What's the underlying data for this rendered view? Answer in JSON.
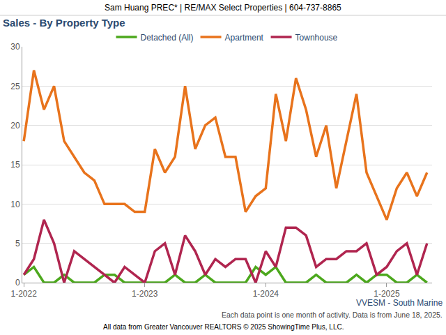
{
  "chart_data": {
    "type": "line",
    "header": "Sam Huang PREC* | RE/MAX Select Properties | 604-737-8865",
    "title": "Sales - By Property Type",
    "annotations": [
      "VVESM - South Marine",
      "Each data point is one month of activity. Data is from June 18, 2025.",
      "All data from Greater Vancouver REALTORS © 2025 ShowingTime Plus, LLC."
    ],
    "categories": [
      "1-2022",
      null,
      null,
      null,
      null,
      null,
      null,
      null,
      null,
      null,
      null,
      null,
      "1-2023",
      null,
      null,
      null,
      null,
      null,
      null,
      null,
      null,
      null,
      null,
      null,
      "1-2024",
      null,
      null,
      null,
      null,
      null,
      null,
      null,
      null,
      null,
      null,
      null,
      "1-2025",
      null,
      null,
      null,
      null
    ],
    "series": [
      {
        "name": "Detached (All)",
        "color": "#4ca81d",
        "values": [
          1,
          2,
          0,
          0,
          1,
          0,
          0,
          0,
          1,
          1,
          0,
          0,
          0,
          0,
          0,
          1,
          0,
          0,
          1,
          0,
          0,
          0,
          0,
          2,
          1,
          2,
          0,
          0,
          0,
          1,
          0,
          0,
          0,
          1,
          0,
          1,
          1,
          0,
          0,
          1,
          0
        ]
      },
      {
        "name": "Apartment",
        "color": "#e8731c",
        "values": [
          18,
          27,
          22,
          25,
          18,
          16,
          14,
          13,
          10,
          10,
          10,
          9,
          9,
          17,
          14,
          16,
          25,
          17,
          20,
          21,
          16,
          16,
          9,
          11,
          12,
          24,
          18,
          26,
          22,
          16,
          20,
          12,
          18,
          24,
          14,
          11,
          8,
          12,
          14,
          11,
          14
        ]
      },
      {
        "name": "Townhouse",
        "color": "#b0254f",
        "values": [
          1,
          3,
          8,
          5,
          0,
          4,
          3,
          2,
          1,
          0,
          2,
          1,
          0,
          4,
          5,
          1,
          6,
          4,
          1,
          3,
          2,
          3,
          3,
          0,
          4,
          2,
          7,
          7,
          6,
          2,
          3,
          3,
          4,
          4,
          5,
          1,
          2,
          4,
          5,
          1,
          5
        ]
      }
    ],
    "ylim": [
      0,
      30
    ],
    "yticks": [
      0,
      5,
      10,
      15,
      20,
      25,
      30
    ],
    "grid": true,
    "legend": "top",
    "marker": "none"
  }
}
